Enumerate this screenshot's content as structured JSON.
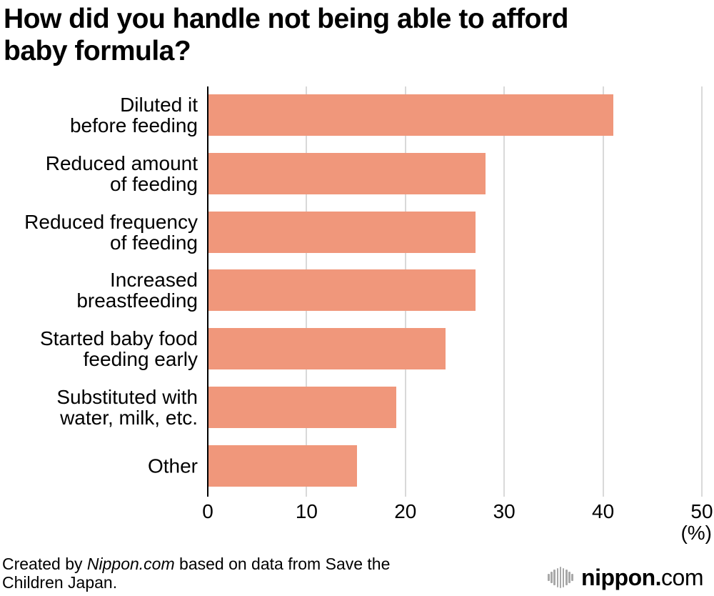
{
  "title": {
    "line1": "How did you handle not being able to afford",
    "line2": "baby formula?"
  },
  "chart_data": {
    "type": "bar",
    "orientation": "horizontal",
    "title": "How did you handle not being able to afford baby formula?",
    "categories": [
      "Diluted it before feeding",
      "Reduced amount of feeding",
      "Reduced frequency of feeding",
      "Increased breastfeeding",
      "Started baby food feeding early",
      "Substituted with water, milk, etc.",
      "Other"
    ],
    "category_lines": [
      [
        "Diluted it",
        "before feeding"
      ],
      [
        "Reduced amount",
        "of feeding"
      ],
      [
        "Reduced frequency",
        "of feeding"
      ],
      [
        "Increased",
        "breastfeeding"
      ],
      [
        "Started baby food",
        "feeding early"
      ],
      [
        "Substituted with",
        "water, milk, etc."
      ],
      [
        "Other"
      ]
    ],
    "values": [
      41,
      28,
      27,
      27,
      24,
      19,
      15
    ],
    "xlim": [
      0,
      50
    ],
    "x_ticks": [
      0,
      10,
      20,
      30,
      40,
      50
    ],
    "x_unit_label": "(%)",
    "grid": true,
    "legend": false,
    "bar_color": "#f0977b",
    "gridline_color": "#d9d9d9",
    "axis_color": "#000000"
  },
  "footer": {
    "credit_prefix": "Created by ",
    "credit_brand": "Nippon.com",
    "credit_suffix": " based on data from Save the",
    "credit_line2": "Children Japan."
  },
  "logo": {
    "icon": "soundwave-bars-icon",
    "name_bold": "nippon",
    "dot": ".",
    "name_light": "com",
    "name_bold_color": "#3f3f3f",
    "dot_color": "#e60012",
    "name_light_color": "#a8a8a8"
  }
}
